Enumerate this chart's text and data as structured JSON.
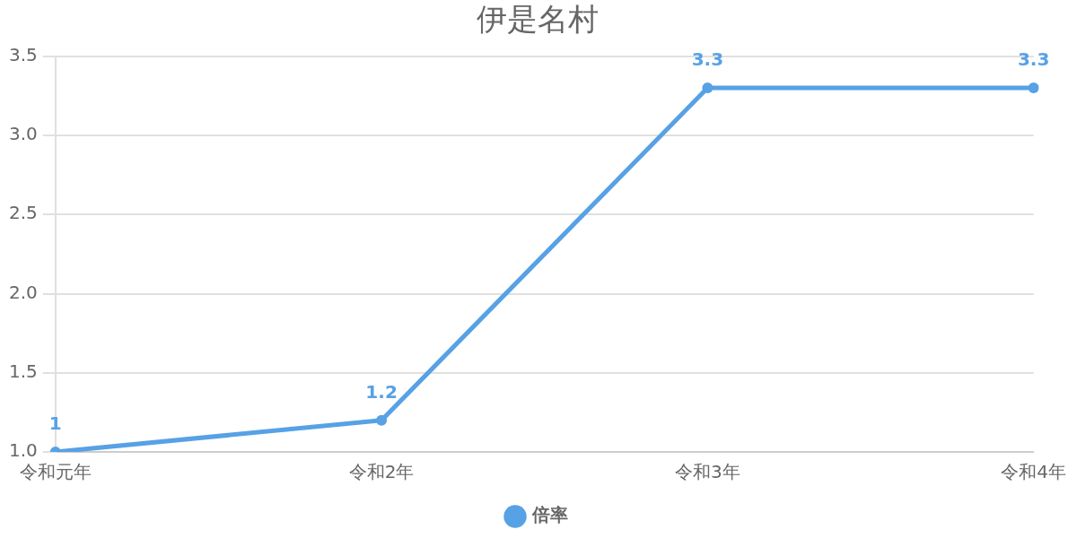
{
  "chart_data": {
    "type": "line",
    "title": "伊是名村",
    "categories": [
      "令和元年",
      "令和2年",
      "令和3年",
      "令和4年"
    ],
    "series": [
      {
        "name": "倍率",
        "color": "#57a1e5",
        "values": [
          1,
          1.2,
          3.3,
          3.3
        ]
      }
    ],
    "ylim": [
      1,
      3.5
    ],
    "yticks": [
      {
        "value": 1,
        "label": "1.0"
      },
      {
        "value": 1.5,
        "label": "1.5"
      },
      {
        "value": 2,
        "label": "2.0"
      },
      {
        "value": 2.5,
        "label": "2.5"
      },
      {
        "value": 3,
        "label": "3.0"
      },
      {
        "value": 3.5,
        "label": "3.5"
      }
    ],
    "grid": "y",
    "legend": "bottom",
    "marker": "circle",
    "data_labels": true
  }
}
